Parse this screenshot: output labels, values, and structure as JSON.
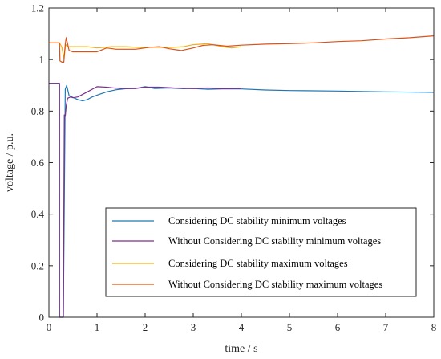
{
  "chart_data": {
    "type": "line",
    "xlabel": "time / s",
    "ylabel": "voltage / p.u.",
    "xlim": [
      0,
      8
    ],
    "ylim": [
      0,
      1.2
    ],
    "x_ticks": [
      "0",
      "1",
      "2",
      "3",
      "4",
      "5",
      "6",
      "7",
      "8"
    ],
    "y_ticks": [
      "0",
      "0.2",
      "0.4",
      "0.6",
      "0.8",
      "1",
      "1.2"
    ],
    "grid": false,
    "legend_position": "lower-right",
    "series": [
      {
        "name": "Considering DC stability minimum voltages",
        "color": "#1f77b4",
        "x": [
          0,
          0.22,
          0.22,
          0.3,
          0.34,
          0.37,
          0.42,
          0.5,
          0.6,
          0.7,
          0.8,
          0.9,
          1.0,
          1.2,
          1.4,
          1.6,
          1.8,
          2.0,
          2.2,
          2.5,
          2.8,
          3.0,
          3.3,
          3.6,
          4.0,
          4.5,
          5.0,
          6.0,
          7.0,
          8.0
        ],
        "y": [
          0.908,
          0.908,
          0.0,
          0.0,
          0.885,
          0.9,
          0.86,
          0.853,
          0.845,
          0.84,
          0.845,
          0.855,
          0.862,
          0.875,
          0.883,
          0.887,
          0.888,
          0.895,
          0.888,
          0.89,
          0.887,
          0.888,
          0.885,
          0.886,
          0.886,
          0.882,
          0.88,
          0.878,
          0.875,
          0.873
        ]
      },
      {
        "name": "Without Considering DC stability minimum voltages",
        "color": "#7e2f8e",
        "x": [
          0,
          0.22,
          0.22,
          0.3,
          0.32,
          0.34,
          0.36,
          0.39,
          0.45,
          0.5,
          0.6,
          0.8,
          1.0,
          1.2,
          1.4,
          1.6,
          1.8,
          2.0,
          2.3,
          2.6,
          3.0,
          3.3,
          3.6,
          4.0
        ],
        "y": [
          0.908,
          0.908,
          0.0,
          0.0,
          0.785,
          0.78,
          0.82,
          0.85,
          0.855,
          0.852,
          0.855,
          0.875,
          0.895,
          0.893,
          0.889,
          0.888,
          0.888,
          0.893,
          0.893,
          0.89,
          0.888,
          0.89,
          0.887,
          0.888
        ]
      },
      {
        "name": "Considering DC stability maximum voltages",
        "color": "#edb120",
        "x": [
          0,
          0.22,
          0.27,
          0.31,
          0.35,
          0.4,
          0.5,
          0.6,
          0.8,
          1.0,
          1.3,
          1.6,
          1.9,
          2.2,
          2.5,
          2.8,
          3.0,
          3.3,
          3.6,
          3.8,
          4.0
        ],
        "y": [
          1.065,
          1.065,
          1.048,
          1.005,
          1.058,
          1.05,
          1.05,
          1.05,
          1.05,
          1.045,
          1.05,
          1.05,
          1.047,
          1.048,
          1.047,
          1.05,
          1.058,
          1.062,
          1.05,
          1.045,
          1.05
        ]
      },
      {
        "name": "Without Considering DC stability maximum voltages",
        "color": "#d95319",
        "x": [
          0,
          0.22,
          0.23,
          0.27,
          0.31,
          0.34,
          0.36,
          0.39,
          0.42,
          0.5,
          0.7,
          1.0,
          1.2,
          1.4,
          1.6,
          1.8,
          2.1,
          2.3,
          2.5,
          2.75,
          3.0,
          3.2,
          3.4,
          3.7,
          4.0,
          4.5,
          5.0,
          5.5,
          6.0,
          6.5,
          7.0,
          7.5,
          8.0
        ],
        "y": [
          1.065,
          1.065,
          0.995,
          0.99,
          0.99,
          1.06,
          1.085,
          1.06,
          1.035,
          1.03,
          1.03,
          1.03,
          1.045,
          1.04,
          1.04,
          1.04,
          1.048,
          1.05,
          1.042,
          1.035,
          1.045,
          1.055,
          1.058,
          1.052,
          1.056,
          1.06,
          1.062,
          1.065,
          1.07,
          1.073,
          1.08,
          1.085,
          1.092
        ]
      }
    ]
  }
}
